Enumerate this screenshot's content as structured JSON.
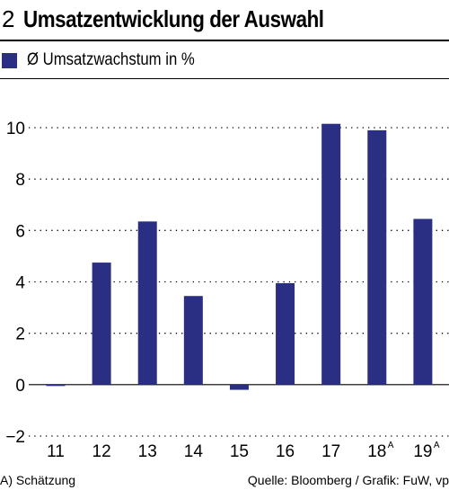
{
  "header": {
    "number": "2",
    "title": "Umsatzentwicklung der Auswahl"
  },
  "legend": {
    "label": "Ø Umsatzwachstum in %"
  },
  "footer": {
    "note": "A) Schätzung",
    "source": "Quelle: Bloomberg / Grafik: FuW, vp"
  },
  "colors": {
    "bar": "#2b2f84"
  },
  "chart_data": {
    "type": "bar",
    "categories": [
      "11",
      "12",
      "13",
      "14",
      "15",
      "16",
      "17",
      "18",
      "19"
    ],
    "category_superscripts": [
      "",
      "",
      "",
      "",
      "",
      "",
      "",
      "A",
      "A"
    ],
    "series": [
      {
        "name": "Ø Umsatzwachstum in %",
        "values": [
          -0.05,
          4.75,
          6.35,
          3.45,
          -0.2,
          3.95,
          10.15,
          9.9,
          6.45
        ]
      }
    ],
    "ylim": [
      -2,
      10
    ],
    "yticks": [
      -2,
      0,
      2,
      4,
      6,
      8,
      10
    ],
    "grid": true,
    "legend_position": "top-left"
  }
}
